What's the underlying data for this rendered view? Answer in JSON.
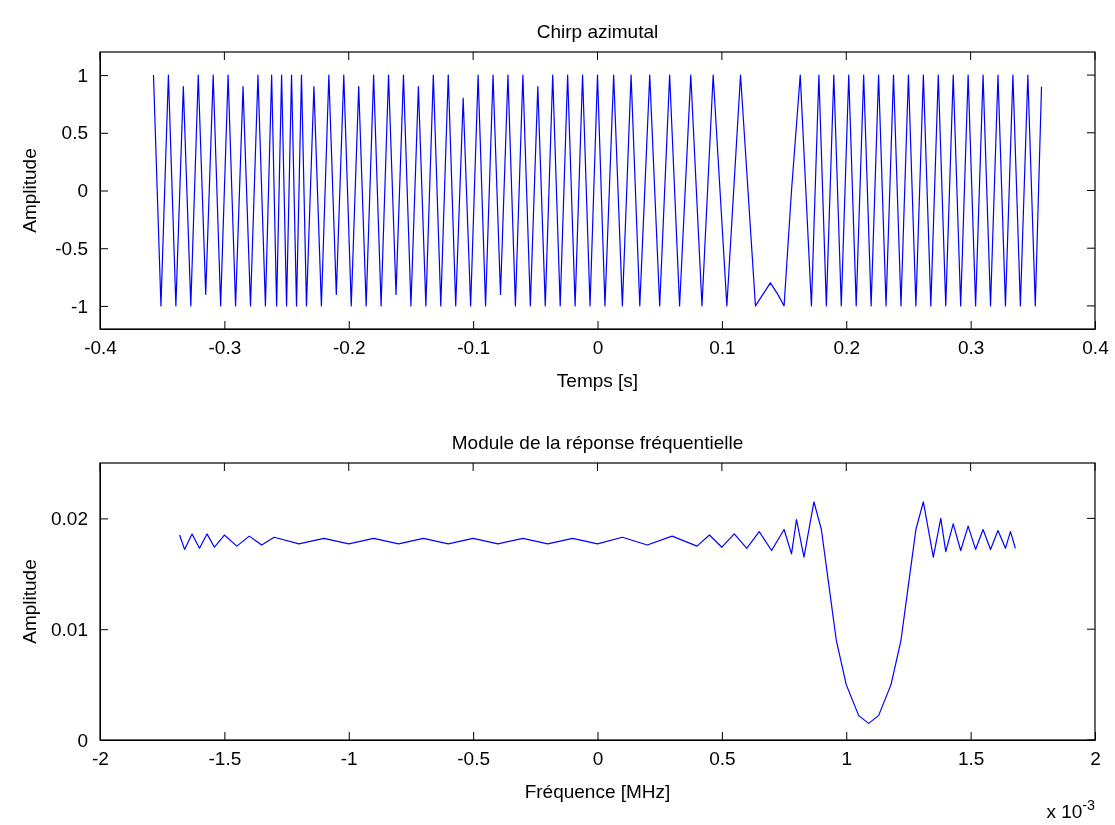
{
  "chart_data": [
    {
      "type": "line",
      "title": "Chirp azimutal",
      "xlabel": "Temps [s]",
      "ylabel": "Amplitude",
      "xlim": [
        -0.4,
        0.4
      ],
      "xticks": [
        -0.4,
        -0.3,
        -0.2,
        -0.1,
        0,
        0.1,
        0.2,
        0.3,
        0.4
      ],
      "ylim": [
        -1.2,
        1.2
      ],
      "yticks": [
        -1,
        -0.5,
        0,
        0.5,
        1
      ],
      "series": [
        {
          "color": "#0000ff",
          "x": [
            -0.357,
            -0.351,
            -0.345,
            -0.339,
            -0.333,
            -0.327,
            -0.321,
            -0.315,
            -0.309,
            -0.303,
            -0.297,
            -0.291,
            -0.285,
            -0.279,
            -0.273,
            -0.267,
            -0.262,
            -0.258,
            -0.254,
            -0.25,
            -0.246,
            -0.242,
            -0.238,
            -0.234,
            -0.228,
            -0.222,
            -0.216,
            -0.21,
            -0.204,
            -0.198,
            -0.192,
            -0.186,
            -0.18,
            -0.174,
            -0.168,
            -0.162,
            -0.156,
            -0.15,
            -0.144,
            -0.138,
            -0.132,
            -0.126,
            -0.12,
            -0.114,
            -0.108,
            -0.102,
            -0.096,
            -0.09,
            -0.084,
            -0.078,
            -0.072,
            -0.066,
            -0.06,
            -0.054,
            -0.048,
            -0.042,
            -0.036,
            -0.03,
            -0.024,
            -0.018,
            -0.012,
            -0.006,
            0,
            0.006,
            0.013,
            0.02,
            0.027,
            0.034,
            0.042,
            0.05,
            0.058,
            0.066,
            0.075,
            0.084,
            0.093,
            0.104,
            0.115,
            0.127,
            0.133,
            0.139,
            0.145,
            0.15,
            0.156,
            0.163,
            0.172,
            0.178,
            0.184,
            0.19,
            0.196,
            0.202,
            0.208,
            0.214,
            0.22,
            0.226,
            0.232,
            0.238,
            0.244,
            0.25,
            0.256,
            0.262,
            0.268,
            0.274,
            0.28,
            0.286,
            0.292,
            0.298,
            0.304,
            0.31,
            0.316,
            0.322,
            0.328,
            0.334,
            0.34,
            0.346,
            0.352,
            0.357
          ],
          "values": [
            1,
            -1,
            1,
            -1,
            0.9,
            -1,
            1,
            -0.9,
            1,
            -1,
            1,
            -1,
            0.9,
            -1,
            1,
            -1,
            1,
            -1,
            1,
            -1,
            1,
            -1,
            1,
            -1,
            0.9,
            -1,
            1,
            -0.9,
            1,
            -1,
            0.9,
            -1,
            1,
            -1,
            1,
            -0.9,
            1,
            -1,
            0.9,
            -1,
            1,
            -1,
            1,
            -1,
            0.8,
            -1,
            1,
            -1,
            1,
            -0.9,
            1,
            -1,
            1,
            -1,
            0.9,
            -1,
            1,
            -1,
            1,
            -1,
            1,
            -1,
            1,
            -1,
            1,
            -1,
            1,
            -1,
            1,
            -1,
            1,
            -1,
            1,
            -1,
            1,
            -1,
            1,
            -1,
            -0.9,
            -0.8,
            -0.9,
            -1,
            0,
            1,
            -1,
            1,
            -1,
            1,
            -1,
            1,
            -1,
            1,
            -1,
            1,
            -1,
            1,
            -1,
            1,
            -1,
            1,
            -1,
            1,
            -1,
            1,
            -1,
            1,
            -1,
            1,
            -1,
            1,
            -1,
            1,
            -1,
            1,
            -1,
            0.9
          ]
        }
      ]
    },
    {
      "type": "line",
      "title": "Module de la réponse fréquentielle",
      "xlabel": "Fréquence [MHz]",
      "ylabel": "Amplitude",
      "annotations": [
        "x 10$^{-3}$"
      ],
      "xlim": [
        -2,
        2
      ],
      "xticks": [
        -2,
        -1.5,
        -1,
        -0.5,
        0,
        0.5,
        1,
        1.5,
        2
      ],
      "ylim": [
        0,
        0.025
      ],
      "yticks": [
        0,
        0.01,
        0.02
      ],
      "series": [
        {
          "color": "#0000ff",
          "x": [
            -1.68,
            -1.66,
            -1.63,
            -1.6,
            -1.57,
            -1.54,
            -1.5,
            -1.45,
            -1.4,
            -1.35,
            -1.3,
            -1.2,
            -1.1,
            -1,
            -0.9,
            -0.8,
            -0.7,
            -0.6,
            -0.5,
            -0.4,
            -0.3,
            -0.2,
            -0.1,
            0,
            0.1,
            0.2,
            0.3,
            0.4,
            0.45,
            0.5,
            0.55,
            0.6,
            0.65,
            0.7,
            0.75,
            0.78,
            0.8,
            0.83,
            0.87,
            0.9,
            0.93,
            0.96,
            1,
            1.05,
            1.09,
            1.13,
            1.18,
            1.22,
            1.25,
            1.28,
            1.31,
            1.35,
            1.38,
            1.4,
            1.43,
            1.46,
            1.49,
            1.52,
            1.55,
            1.58,
            1.61,
            1.64,
            1.66,
            1.68
          ],
          "values": [
            0.0185,
            0.0172,
            0.0186,
            0.0173,
            0.0186,
            0.0174,
            0.0185,
            0.0175,
            0.0184,
            0.0176,
            0.0183,
            0.0177,
            0.0182,
            0.0177,
            0.0182,
            0.0177,
            0.0182,
            0.0177,
            0.0182,
            0.0177,
            0.0182,
            0.0177,
            0.0182,
            0.0177,
            0.0183,
            0.0176,
            0.0184,
            0.0175,
            0.0185,
            0.0174,
            0.0186,
            0.0173,
            0.0188,
            0.0171,
            0.019,
            0.0168,
            0.0199,
            0.0165,
            0.0215,
            0.019,
            0.014,
            0.009,
            0.005,
            0.0022,
            0.0015,
            0.0022,
            0.005,
            0.009,
            0.014,
            0.019,
            0.0215,
            0.0165,
            0.02,
            0.017,
            0.0195,
            0.0171,
            0.0193,
            0.0172,
            0.019,
            0.0172,
            0.0189,
            0.0173,
            0.0188,
            0.0173
          ]
        }
      ]
    }
  ]
}
